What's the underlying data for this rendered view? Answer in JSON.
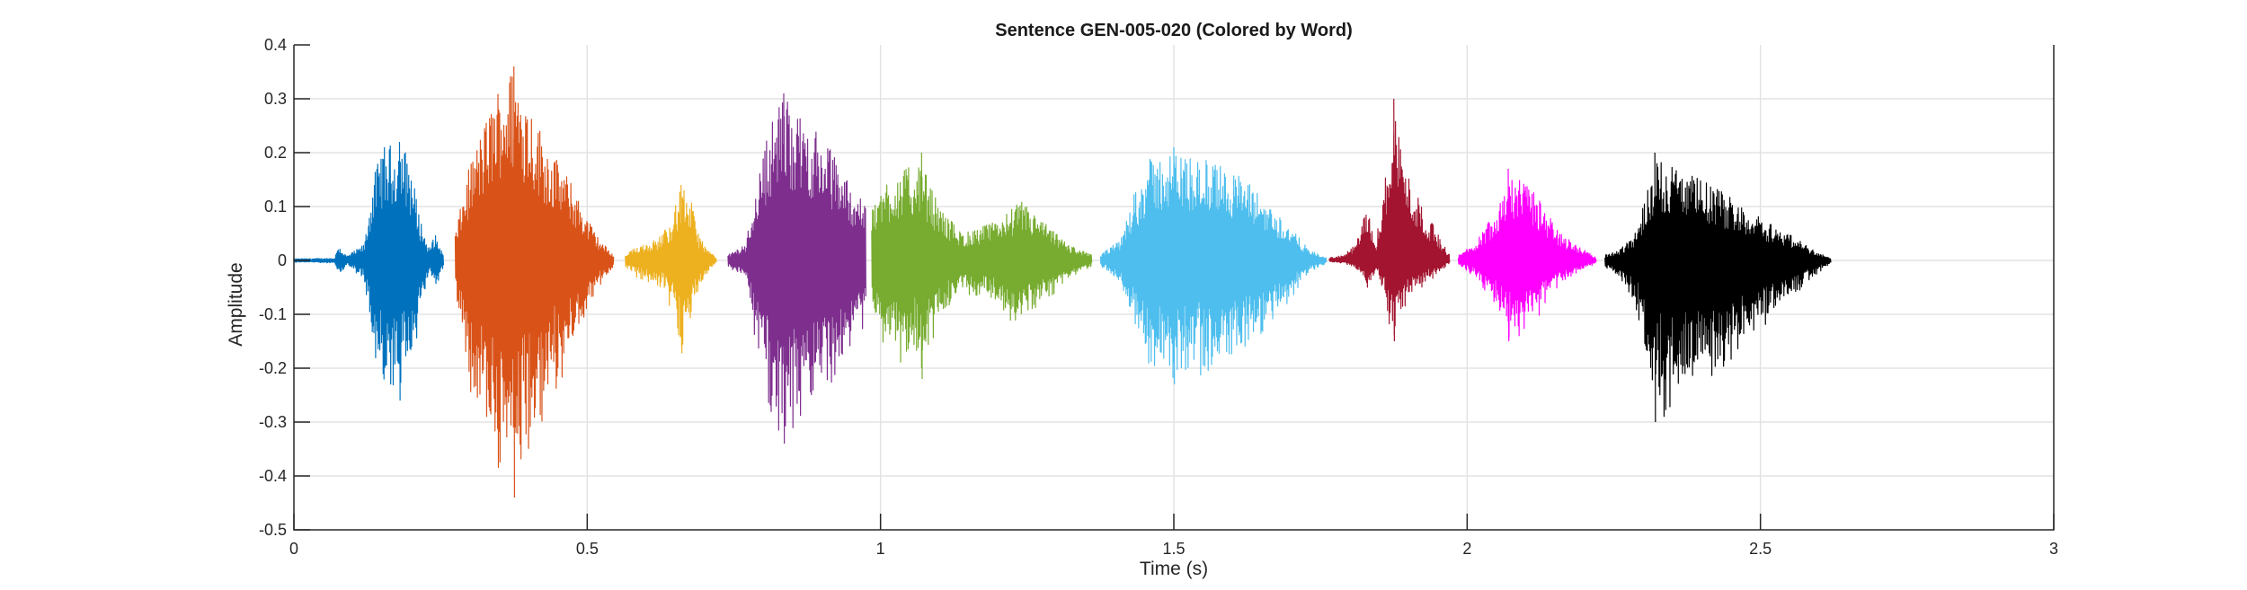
{
  "chart_data": {
    "type": "line",
    "title": "Sentence GEN-005-020 (Colored by Word)",
    "xlabel": "Time (s)",
    "ylabel": "Amplitude",
    "xlim": [
      0,
      3
    ],
    "ylim": [
      -0.5,
      0.4
    ],
    "xticks": [
      0,
      0.5,
      1,
      1.5,
      2,
      2.5,
      3
    ],
    "xtick_labels": [
      "0",
      "0.5",
      "1",
      "1.5",
      "2",
      "2.5",
      "3"
    ],
    "yticks": [
      0.4,
      0.3,
      0.2,
      0.1,
      0,
      -0.1,
      -0.2,
      -0.3,
      -0.4,
      -0.5
    ],
    "ytick_labels": [
      "0.4",
      "0.3",
      "0.2",
      "0.1",
      "0",
      "-0.1",
      "-0.2",
      "-0.3",
      "-0.4",
      "-0.5"
    ],
    "grid": true,
    "segments": [
      {
        "color": "#0072BD",
        "t_start": 0.0,
        "t_end": 0.255,
        "max": 0.22,
        "min": -0.26,
        "envelope": [
          [
            0.0,
            0.003
          ],
          [
            0.07,
            0.004
          ],
          [
            0.075,
            0.03
          ],
          [
            0.09,
            0.008
          ],
          [
            0.12,
            0.03
          ],
          [
            0.135,
            0.15
          ],
          [
            0.15,
            0.21
          ],
          [
            0.18,
            0.22
          ],
          [
            0.195,
            0.2
          ],
          [
            0.215,
            0.08
          ],
          [
            0.23,
            0.02
          ],
          [
            0.24,
            0.05
          ],
          [
            0.255,
            0.01
          ]
        ]
      },
      {
        "color": "#D95319",
        "t_start": 0.275,
        "t_end": 0.545,
        "max": 0.36,
        "min": -0.44,
        "envelope": [
          [
            0.275,
            0.05
          ],
          [
            0.3,
            0.18
          ],
          [
            0.32,
            0.24
          ],
          [
            0.35,
            0.33
          ],
          [
            0.375,
            0.36
          ],
          [
            0.4,
            0.3
          ],
          [
            0.43,
            0.22
          ],
          [
            0.47,
            0.15
          ],
          [
            0.5,
            0.08
          ],
          [
            0.52,
            0.04
          ],
          [
            0.545,
            0.01
          ]
        ]
      },
      {
        "color": "#EDB120",
        "t_start": 0.565,
        "t_end": 0.72,
        "max": 0.14,
        "min": -0.16,
        "envelope": [
          [
            0.565,
            0.01
          ],
          [
            0.59,
            0.03
          ],
          [
            0.62,
            0.04
          ],
          [
            0.645,
            0.08
          ],
          [
            0.66,
            0.14
          ],
          [
            0.675,
            0.12
          ],
          [
            0.69,
            0.05
          ],
          [
            0.705,
            0.02
          ],
          [
            0.72,
            0.005
          ]
        ]
      },
      {
        "color": "#7E2F8E",
        "t_start": 0.74,
        "t_end": 0.975,
        "max": 0.31,
        "min": -0.34,
        "envelope": [
          [
            0.74,
            0.01
          ],
          [
            0.77,
            0.03
          ],
          [
            0.79,
            0.15
          ],
          [
            0.81,
            0.25
          ],
          [
            0.835,
            0.31
          ],
          [
            0.86,
            0.27
          ],
          [
            0.89,
            0.24
          ],
          [
            0.92,
            0.2
          ],
          [
            0.95,
            0.14
          ],
          [
            0.975,
            0.1
          ]
        ]
      },
      {
        "color": "#77AC30",
        "t_start": 0.985,
        "t_end": 1.36,
        "max": 0.2,
        "min": -0.22,
        "envelope": [
          [
            0.985,
            0.1
          ],
          [
            1.01,
            0.15
          ],
          [
            1.04,
            0.17
          ],
          [
            1.07,
            0.18
          ],
          [
            1.1,
            0.1
          ],
          [
            1.14,
            0.05
          ],
          [
            1.19,
            0.07
          ],
          [
            1.24,
            0.11
          ],
          [
            1.28,
            0.07
          ],
          [
            1.32,
            0.03
          ],
          [
            1.36,
            0.01
          ]
        ]
      },
      {
        "color": "#4DBEEE",
        "t_start": 1.375,
        "t_end": 1.76,
        "max": 0.21,
        "min": -0.23,
        "envelope": [
          [
            1.375,
            0.01
          ],
          [
            1.41,
            0.04
          ],
          [
            1.43,
            0.12
          ],
          [
            1.46,
            0.19
          ],
          [
            1.5,
            0.2
          ],
          [
            1.55,
            0.19
          ],
          [
            1.6,
            0.17
          ],
          [
            1.65,
            0.12
          ],
          [
            1.7,
            0.06
          ],
          [
            1.73,
            0.02
          ],
          [
            1.76,
            0.005
          ]
        ]
      },
      {
        "color": "#A2142F",
        "t_start": 1.765,
        "t_end": 1.97,
        "max": 0.3,
        "min": -0.15,
        "envelope": [
          [
            1.765,
            0.005
          ],
          [
            1.79,
            0.01
          ],
          [
            1.81,
            0.03
          ],
          [
            1.83,
            0.1
          ],
          [
            1.845,
            0.04
          ],
          [
            1.86,
            0.15
          ],
          [
            1.875,
            0.3
          ],
          [
            1.89,
            0.2
          ],
          [
            1.91,
            0.13
          ],
          [
            1.94,
            0.07
          ],
          [
            1.97,
            0.01
          ]
        ]
      },
      {
        "color": "#FF00FF",
        "t_start": 1.985,
        "t_end": 2.22,
        "max": 0.17,
        "min": -0.15,
        "envelope": [
          [
            1.985,
            0.01
          ],
          [
            2.01,
            0.03
          ],
          [
            2.04,
            0.08
          ],
          [
            2.07,
            0.16
          ],
          [
            2.1,
            0.15
          ],
          [
            2.13,
            0.1
          ],
          [
            2.16,
            0.05
          ],
          [
            2.2,
            0.02
          ],
          [
            2.22,
            0.005
          ]
        ]
      },
      {
        "color": "#000000",
        "t_start": 2.235,
        "t_end": 2.62,
        "max": 0.2,
        "min": -0.3,
        "envelope": [
          [
            2.235,
            0.01
          ],
          [
            2.26,
            0.02
          ],
          [
            2.29,
            0.06
          ],
          [
            2.32,
            0.19
          ],
          [
            2.35,
            0.18
          ],
          [
            2.4,
            0.15
          ],
          [
            2.45,
            0.12
          ],
          [
            2.5,
            0.08
          ],
          [
            2.55,
            0.05
          ],
          [
            2.59,
            0.02
          ],
          [
            2.62,
            0.003
          ]
        ]
      }
    ]
  }
}
